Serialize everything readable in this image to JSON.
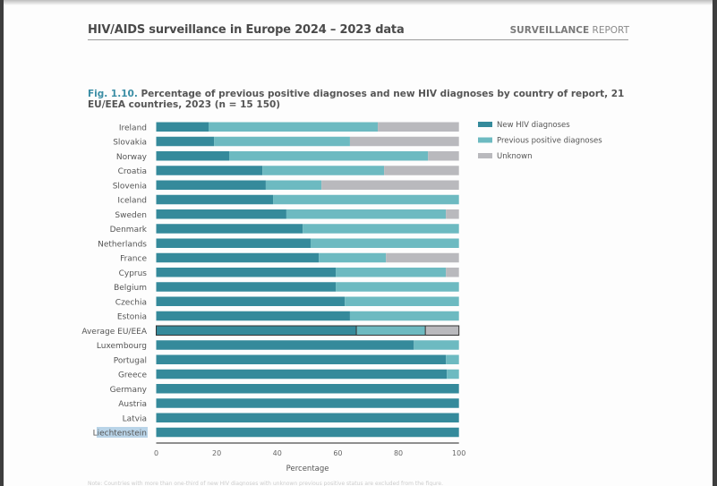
{
  "header": {
    "title": "HIV/AIDS surveillance in Europe 2024 – 2023 data",
    "right_bold": "SURVEILLANCE",
    "right_light": " REPORT"
  },
  "figure": {
    "number": "Fig. 1.10.",
    "title": " Percentage of previous positive diagnoses and new HIV diagnoses by country of report, 21 EU/EEA countries, 2023 (n = 15 150)"
  },
  "colors": {
    "new": "#358a9b",
    "previous": "#6dbac1",
    "unknown": "#b9b9bd",
    "axis": "#6b6b6b",
    "label": "#555555",
    "highlight": "#b9d4e8"
  },
  "chart_data": {
    "type": "bar",
    "orientation": "horizontal",
    "stacked": true,
    "title": "Percentage of previous positive diagnoses and new HIV diagnoses by country of report, 21 EU/EEA countries, 2023 (n = 15 150)",
    "xlabel": "Percentage",
    "ylabel": "",
    "xlim": [
      0,
      100
    ],
    "xticks": [
      "0",
      "20",
      "40",
      "60",
      "80",
      "100"
    ],
    "grid": false,
    "legend_position": "right",
    "categories": [
      "Ireland",
      "Slovakia",
      "Norway",
      "Croatia",
      "Slovenia",
      "Iceland",
      "Sweden",
      "Denmark",
      "Netherlands",
      "France",
      "Cyprus",
      "Belgium",
      "Czechia",
      "Estonia",
      "Average EU/EEA",
      "Luxembourg",
      "Portugal",
      "Greece",
      "Germany",
      "Austria",
      "Latvia",
      "Liechtenstein"
    ],
    "highlighted_category": "Average EU/EEA",
    "selected_label": "Liechtenstein",
    "series": [
      {
        "name": "New HIV diagnoses",
        "values": [
          17.3,
          19.1,
          24.1,
          35.1,
          36.2,
          38.6,
          43.0,
          48.4,
          51.0,
          53.7,
          59.3,
          59.3,
          62.3,
          64.0,
          66.1,
          85.1,
          95.7,
          96.0,
          100,
          100,
          100,
          100
        ]
      },
      {
        "name": "Previous positive diagnoses",
        "values": [
          55.9,
          44.9,
          65.7,
          40.2,
          18.4,
          61.4,
          52.7,
          51.6,
          49.0,
          22.2,
          36.4,
          40.7,
          37.7,
          36.0,
          22.8,
          14.9,
          4.3,
          4.0,
          0,
          0,
          0,
          0
        ]
      },
      {
        "name": "Unknown",
        "values": [
          26.8,
          36.0,
          10.2,
          24.7,
          45.4,
          0,
          4.3,
          0,
          0,
          24.1,
          4.3,
          0,
          0,
          0,
          11.1,
          0,
          0,
          0,
          0,
          0,
          0,
          0
        ]
      }
    ]
  },
  "footnote": "Note: Countries with more than one-third of new HIV diagnoses with unknown previous positive status are excluded from the figure."
}
